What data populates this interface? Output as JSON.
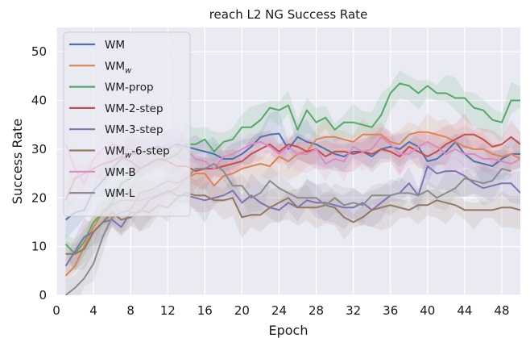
{
  "chart_data": {
    "type": "line",
    "title": "reach L2 NG Success Rate",
    "xlabel": "Epoch",
    "ylabel": "Success Rate",
    "xlim": [
      0,
      50
    ],
    "ylim": [
      0,
      55
    ],
    "xticks": [
      0,
      4,
      8,
      12,
      16,
      20,
      24,
      28,
      32,
      36,
      40,
      44,
      48
    ],
    "yticks": [
      0,
      10,
      20,
      30,
      40,
      50
    ],
    "grid": true,
    "legend_position": "top-left",
    "x": [
      1,
      2,
      3,
      4,
      5,
      6,
      7,
      8,
      9,
      10,
      11,
      12,
      13,
      14,
      15,
      16,
      17,
      18,
      19,
      20,
      21,
      22,
      23,
      24,
      25,
      26,
      27,
      28,
      29,
      30,
      31,
      32,
      33,
      34,
      35,
      36,
      37,
      38,
      39,
      40,
      41,
      42,
      43,
      44,
      45,
      46,
      47,
      48,
      49,
      50
    ],
    "series": [
      {
        "name": "WM",
        "label": "WM",
        "color": "#4c72b0",
        "values": [
          15.5,
          17,
          17.5,
          21.5,
          23.5,
          26,
          28,
          29,
          29,
          30,
          30.5,
          30,
          31,
          30.5,
          30,
          29.5,
          29,
          28,
          28,
          29,
          30.5,
          32.5,
          33,
          33.2,
          30,
          32.5,
          31.5,
          31,
          30,
          29,
          28.5,
          29.5,
          29.5,
          28.5,
          30,
          30.5,
          30,
          31.5,
          30.5,
          27.5,
          28,
          29.5,
          31.5,
          29,
          27.5,
          27,
          26.5,
          28,
          29,
          29
        ]
      },
      {
        "name": "WMw",
        "label": "WM",
        "sub": "w",
        "color": "#dd8452",
        "values": [
          4,
          6,
          10,
          14,
          17,
          18.5,
          19.5,
          19.5,
          19.5,
          20,
          20.5,
          21,
          22,
          24,
          25,
          25,
          22.5,
          24.5,
          25,
          26,
          26.5,
          27,
          26.5,
          28.5,
          27.5,
          29,
          29.5,
          32,
          32.5,
          32.5,
          32,
          31.5,
          33,
          33,
          33,
          31.5,
          31,
          33,
          33.5,
          33.5,
          33,
          32.5,
          31.5,
          30.5,
          30,
          30,
          29,
          28.5,
          29,
          28
        ]
      },
      {
        "name": "WM-prop",
        "label": "WM-prop",
        "color": "#55a868",
        "values": [
          10.5,
          8.5,
          11,
          15,
          17,
          19,
          23,
          24,
          26,
          27,
          28,
          28,
          29,
          31,
          31,
          32,
          29.5,
          31.5,
          32,
          34.5,
          34.5,
          36,
          38.5,
          38,
          39,
          34,
          38,
          35.5,
          36.5,
          34,
          35.5,
          35.5,
          35,
          34.5,
          37,
          41.5,
          43.5,
          43,
          41.5,
          43,
          41.5,
          41.5,
          40.5,
          40.5,
          38.5,
          38,
          36,
          35.5,
          40,
          40
        ]
      },
      {
        "name": "WM-2-step",
        "label": "WM-2-step",
        "color": "#c44e52",
        "values": [
          19.5,
          24,
          25,
          26,
          27,
          27.5,
          28.5,
          27.5,
          26,
          27,
          28,
          27.5,
          26.5,
          26.5,
          25.5,
          26,
          26,
          26.5,
          27,
          27.5,
          29,
          30,
          31,
          29.5,
          31,
          30.5,
          29.5,
          30,
          28.5,
          29.5,
          29.5,
          29,
          29.5,
          29,
          30,
          29.5,
          28.5,
          30.5,
          29.5,
          28.5,
          29.5,
          31,
          32,
          33,
          33,
          32,
          30.5,
          31,
          32.5,
          31
        ]
      },
      {
        "name": "WM-3-step",
        "label": "WM-3-step",
        "color": "#8172b3",
        "values": [
          6,
          9,
          12,
          13,
          15,
          15.5,
          14,
          17,
          17,
          19.5,
          20.5,
          21.5,
          20.5,
          20.5,
          20,
          19.5,
          20,
          20.5,
          21.5,
          19,
          20.5,
          19,
          18,
          17.5,
          19,
          18,
          19.5,
          19,
          19,
          18.5,
          18,
          18,
          19,
          17.5,
          19,
          20.5,
          21,
          23,
          20.5,
          26.5,
          25,
          25.5,
          25.5,
          24.5,
          23,
          22,
          22.5,
          23,
          23,
          21
        ]
      },
      {
        "name": "WMw-6-step",
        "label": "WM",
        "sub": "w",
        "suffix": "-6-step",
        "color": "#937860",
        "values": [
          8.5,
          8.5,
          9.5,
          13,
          15,
          17,
          15.5,
          16,
          17.5,
          17,
          18.5,
          18,
          20,
          21,
          20.5,
          20.5,
          19.5,
          19.5,
          20,
          16,
          16.5,
          16.5,
          18,
          19,
          20,
          18,
          18,
          18,
          18.5,
          18,
          16,
          15,
          16,
          17.5,
          18,
          18.5,
          18,
          17.5,
          18.5,
          18.5,
          19.5,
          19,
          18.5,
          17.5,
          17.5,
          17.5,
          17.5,
          18,
          18,
          17.5
        ]
      },
      {
        "name": "WM-B",
        "label": "WM-B",
        "color": "#da8bc3",
        "values": [
          31,
          26,
          23,
          28,
          30,
          31,
          30.5,
          30,
          29,
          30,
          30,
          31,
          30.5,
          30,
          28,
          27.5,
          26,
          28.5,
          29,
          30,
          31,
          31.5,
          30.5,
          29,
          30.5,
          29,
          29,
          30,
          27,
          28,
          27.5,
          30.5,
          29.5,
          30,
          32.5,
          31,
          29,
          29,
          30.5,
          31.5,
          30.5,
          29,
          30,
          29,
          29,
          28,
          28,
          27.5,
          27,
          28
        ]
      },
      {
        "name": "WM-L",
        "label": "WM-L",
        "color": "#8c8c8c",
        "values": [
          0,
          1.5,
          3.5,
          6.5,
          12,
          16,
          17,
          17.5,
          21,
          21.5,
          22.5,
          23.5,
          23,
          24,
          26,
          26,
          27,
          25.5,
          22.5,
          22.5,
          20,
          21,
          23.5,
          22,
          21,
          20,
          20,
          20,
          18.5,
          20,
          18.5,
          19,
          18.5,
          20.5,
          20.5,
          20.5,
          21,
          21,
          20.5,
          21.5,
          20,
          21,
          22,
          24,
          23.5,
          23,
          23.5,
          26,
          25.5,
          null
        ]
      }
    ]
  }
}
